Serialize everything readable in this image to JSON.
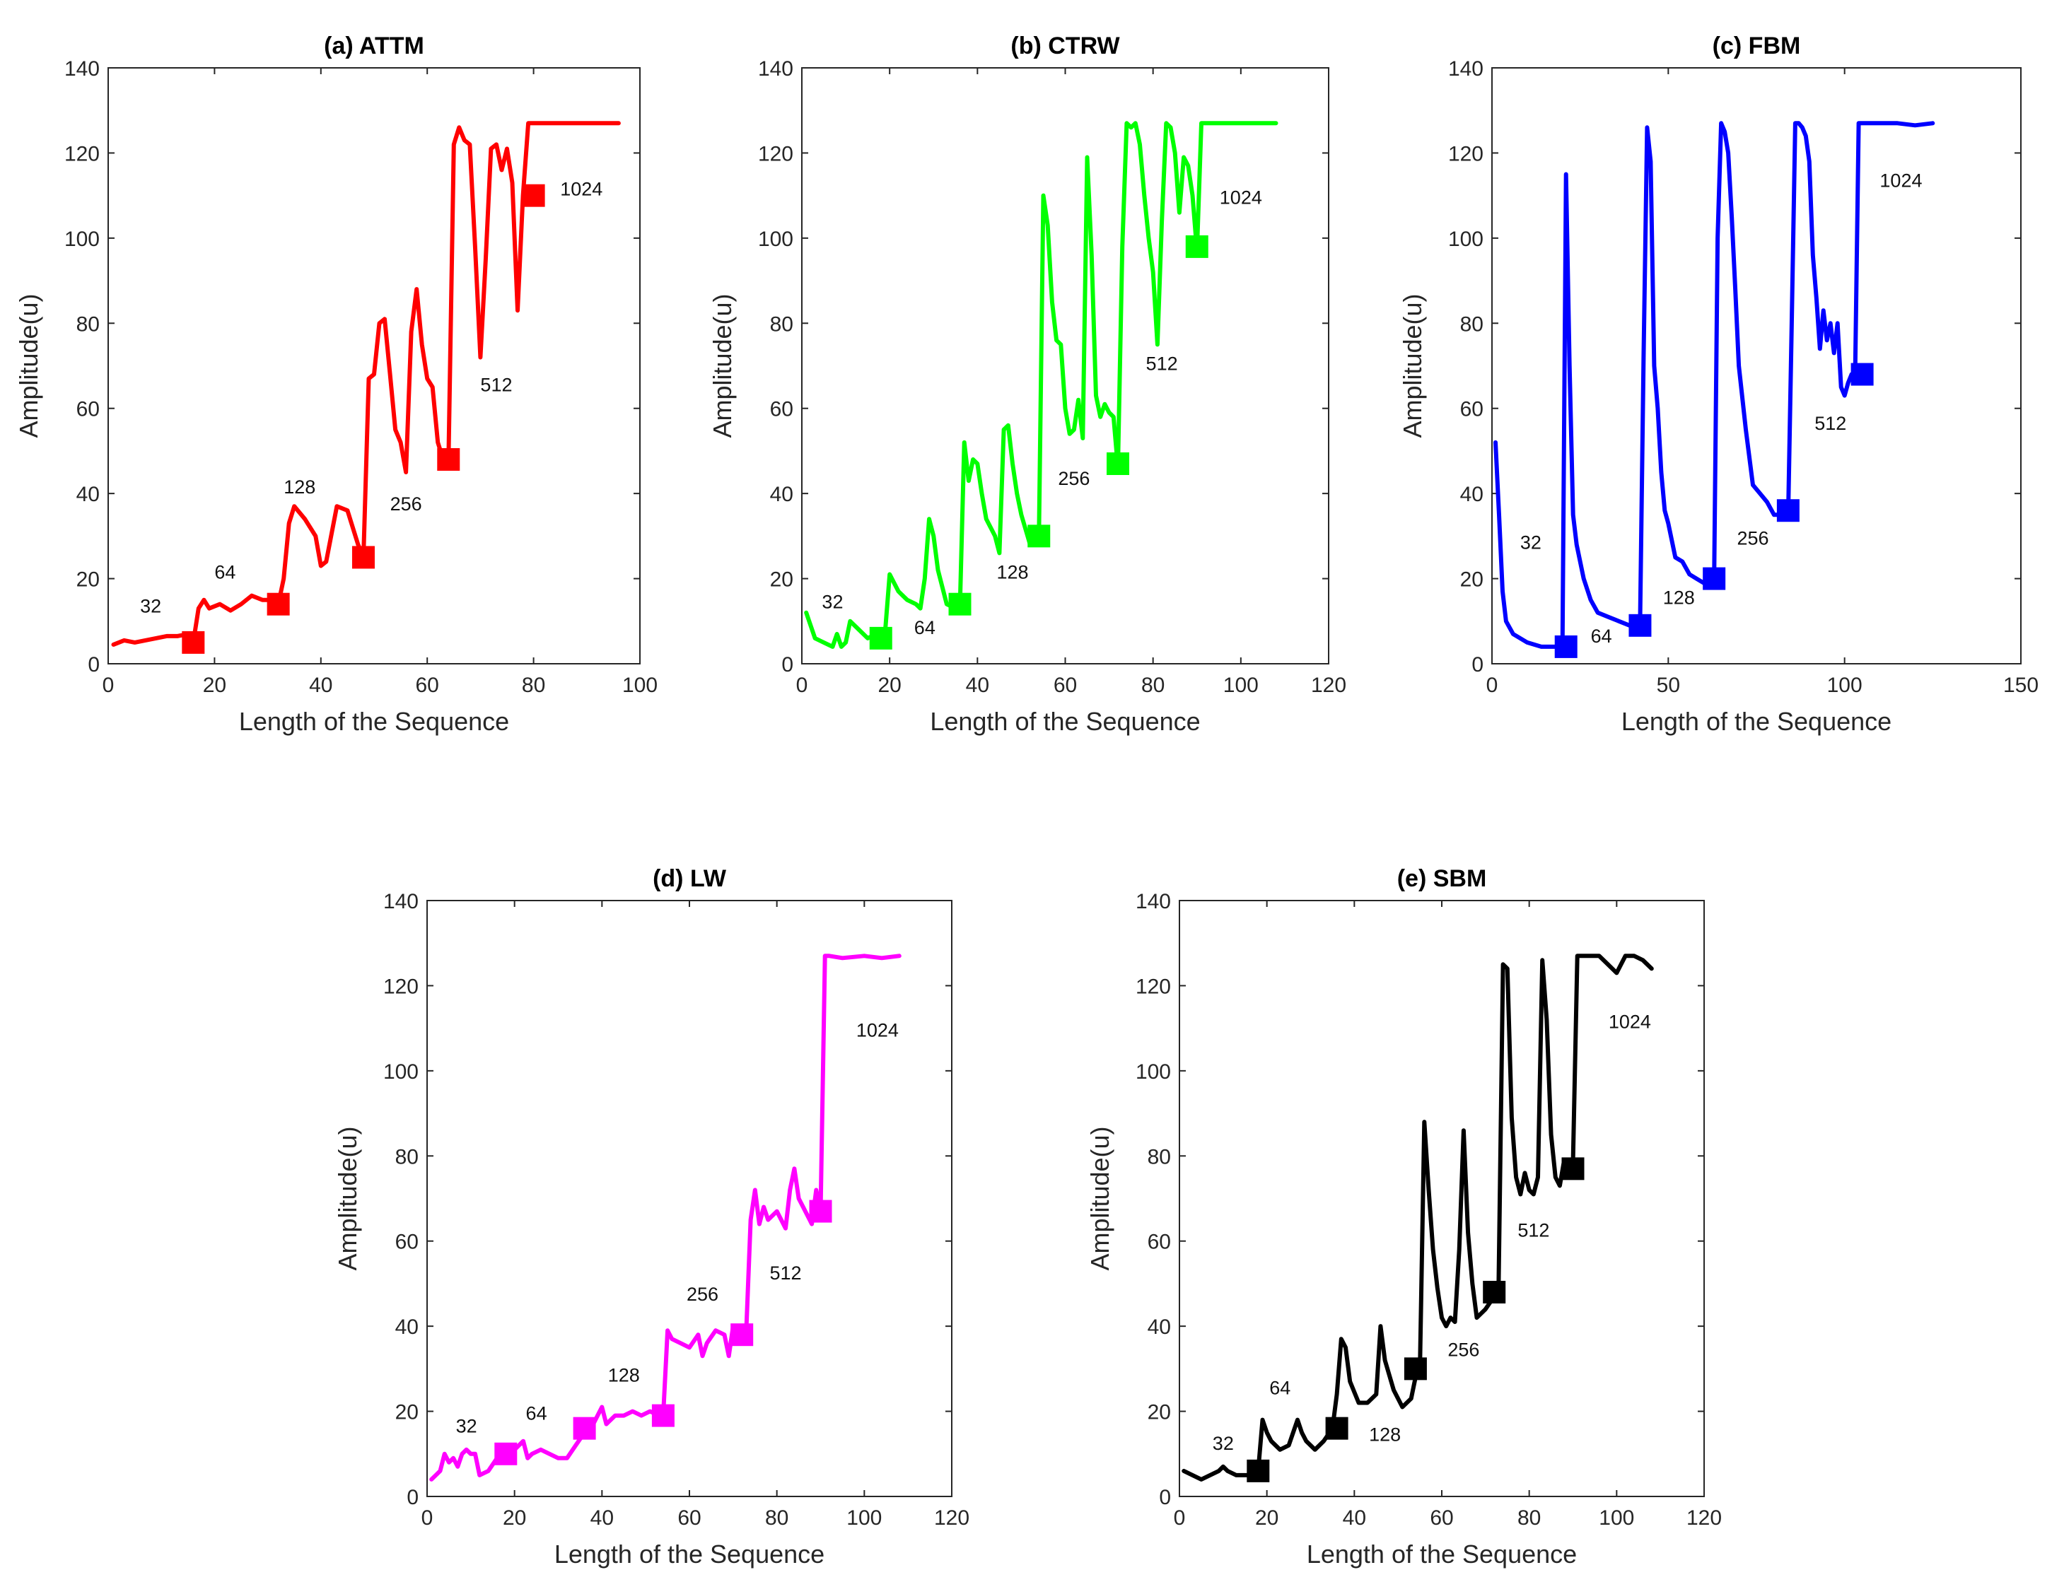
{
  "chart_data": [
    {
      "type": "line",
      "title": "(a) ATTM",
      "xlabel": "Length of the Sequence",
      "ylabel": "Amplitude(u)",
      "xlim": [
        0,
        100
      ],
      "ylim": [
        0,
        140
      ],
      "xticks": [
        0,
        20,
        40,
        60,
        80,
        100
      ],
      "yticks": [
        0,
        20,
        40,
        60,
        80,
        100,
        120,
        140
      ],
      "grid": true,
      "color": "#ff0000",
      "series": [
        {
          "name": "ATTM",
          "x": [
            1,
            3,
            5,
            7,
            9,
            11,
            13,
            15,
            16,
            17,
            18,
            19,
            21,
            23,
            25,
            27,
            29,
            31,
            32,
            33,
            34,
            35,
            37,
            39,
            40,
            41,
            43,
            45,
            47,
            48,
            49,
            50,
            51,
            52,
            53,
            54,
            55,
            56,
            57,
            58,
            59,
            60,
            61,
            62,
            63,
            64,
            65,
            66,
            67,
            68,
            69,
            70,
            71,
            72,
            73,
            74,
            75,
            76,
            77,
            78,
            79,
            80,
            81,
            83,
            85,
            87,
            90,
            93,
            96
          ],
          "y": [
            4.5,
            5.5,
            5,
            5.5,
            6,
            6.5,
            6.5,
            7,
            5,
            13,
            15,
            13,
            14,
            12.5,
            14,
            16,
            15,
            15,
            14,
            20,
            33,
            37,
            34,
            30,
            23,
            24,
            37,
            36,
            28,
            25,
            67,
            68,
            80,
            81,
            68,
            55,
            52,
            45,
            78,
            88,
            75,
            67,
            65,
            52,
            48,
            48,
            122,
            126,
            123,
            122,
            98,
            72,
            95,
            121,
            122,
            116,
            121,
            113,
            83,
            110,
            127,
            127,
            127,
            127,
            127,
            127,
            127,
            127,
            127
          ]
        }
      ],
      "markers": [
        {
          "x": 16,
          "y": 5
        },
        {
          "x": 32,
          "y": 14
        },
        {
          "x": 48,
          "y": 25
        },
        {
          "x": 64,
          "y": 48
        },
        {
          "x": 80,
          "y": 110
        }
      ],
      "annotations": [
        {
          "text": "32",
          "x": 8,
          "y": 12
        },
        {
          "text": "64",
          "x": 22,
          "y": 20
        },
        {
          "text": "128",
          "x": 36,
          "y": 40
        },
        {
          "text": "256",
          "x": 56,
          "y": 36
        },
        {
          "text": "512",
          "x": 73,
          "y": 64
        },
        {
          "text": "1024",
          "x": 89,
          "y": 110
        }
      ]
    },
    {
      "type": "line",
      "title": "(b) CTRW",
      "xlabel": "Length of the Sequence",
      "ylabel": "Amplitude(u)",
      "xlim": [
        0,
        120
      ],
      "ylim": [
        0,
        140
      ],
      "xticks": [
        0,
        20,
        40,
        60,
        80,
        100,
        120
      ],
      "yticks": [
        0,
        20,
        40,
        60,
        80,
        100,
        120,
        140
      ],
      "grid": true,
      "color": "#00ff00",
      "series": [
        {
          "name": "CTRW",
          "x": [
            1,
            2,
            3,
            5,
            7,
            8,
            9,
            10,
            11,
            13,
            15,
            17,
            18,
            19,
            20,
            22,
            24,
            26,
            27,
            28,
            29,
            30,
            31,
            32,
            33,
            35,
            36,
            37,
            38,
            39,
            40,
            41,
            42,
            43,
            44,
            45,
            46,
            47,
            48,
            49,
            50,
            52,
            54,
            55,
            56,
            57,
            58,
            59,
            60,
            61,
            62,
            63,
            64,
            65,
            66,
            67,
            68,
            69,
            70,
            71,
            72,
            73,
            74,
            75,
            76,
            77,
            78,
            79,
            80,
            81,
            82,
            83,
            84,
            85,
            86,
            87,
            88,
            89,
            90,
            91,
            93,
            96,
            100,
            104,
            108
          ],
          "y": [
            12,
            9,
            6,
            5,
            4,
            7,
            4,
            5,
            10,
            8,
            6,
            7,
            6,
            8,
            21,
            17,
            15,
            14,
            13,
            20,
            34,
            30,
            22,
            18,
            14,
            13,
            13,
            52,
            43,
            48,
            47,
            40,
            34,
            32,
            30,
            26,
            55,
            56,
            47,
            40,
            35,
            28,
            30,
            110,
            103,
            85,
            76,
            75,
            60,
            54,
            55,
            62,
            53,
            119,
            96,
            63,
            58,
            61,
            59,
            58,
            46,
            98,
            127,
            126,
            127,
            122,
            110,
            100,
            92,
            75,
            104,
            127,
            126,
            120,
            106,
            119,
            117,
            110,
            97,
            127,
            127,
            127,
            127,
            127,
            127
          ]
        }
      ],
      "markers": [
        {
          "x": 18,
          "y": 6
        },
        {
          "x": 36,
          "y": 14
        },
        {
          "x": 54,
          "y": 30
        },
        {
          "x": 72,
          "y": 47
        },
        {
          "x": 90,
          "y": 98
        }
      ],
      "annotations": [
        {
          "text": "32",
          "x": 7,
          "y": 13
        },
        {
          "text": "64",
          "x": 28,
          "y": 7
        },
        {
          "text": "128",
          "x": 48,
          "y": 20
        },
        {
          "text": "256",
          "x": 62,
          "y": 42
        },
        {
          "text": "512",
          "x": 82,
          "y": 69
        },
        {
          "text": "1024",
          "x": 100,
          "y": 108
        }
      ]
    },
    {
      "type": "line",
      "title": "(c) FBM",
      "xlabel": "Length of the Sequence",
      "ylabel": "Amplitude(u)",
      "xlim": [
        0,
        150
      ],
      "ylim": [
        0,
        140
      ],
      "xticks": [
        0,
        50,
        100,
        150
      ],
      "yticks": [
        0,
        20,
        40,
        60,
        80,
        100,
        120,
        140
      ],
      "grid": true,
      "color": "#0000ff",
      "series": [
        {
          "name": "FBM",
          "x": [
            1,
            2,
            3,
            4,
            6,
            8,
            10,
            12,
            14,
            16,
            18,
            20,
            21,
            22,
            23,
            24,
            26,
            28,
            30,
            33,
            36,
            39,
            42,
            43,
            44,
            45,
            46,
            47,
            48,
            49,
            50,
            52,
            54,
            56,
            58,
            60,
            63,
            64,
            65,
            66,
            67,
            68,
            69,
            70,
            72,
            74,
            76,
            78,
            80,
            82,
            84,
            85,
            86,
            87,
            88,
            89,
            90,
            91,
            92,
            93,
            94,
            95,
            96,
            97,
            98,
            99,
            100,
            101,
            102,
            103,
            104,
            105,
            106,
            110,
            115,
            120,
            125
          ],
          "y": [
            52,
            35,
            17,
            10,
            7,
            6,
            5,
            4.5,
            4,
            4,
            4,
            4,
            115,
            70,
            35,
            28,
            20,
            15,
            12,
            11,
            10,
            9,
            9,
            72,
            126,
            118,
            70,
            60,
            45,
            36,
            33,
            25,
            24,
            21,
            20,
            19,
            20,
            100,
            127,
            125,
            120,
            105,
            88,
            70,
            55,
            42,
            40,
            38,
            35,
            35,
            35,
            80,
            127,
            127,
            126,
            124,
            118,
            96,
            86,
            74,
            83,
            76,
            80,
            73,
            80,
            65,
            63,
            66,
            68,
            68,
            127,
            127,
            127,
            127,
            127,
            126.5,
            127
          ]
        }
      ],
      "markers": [
        {
          "x": 21,
          "y": 4
        },
        {
          "x": 42,
          "y": 9
        },
        {
          "x": 63,
          "y": 20
        },
        {
          "x": 84,
          "y": 36
        },
        {
          "x": 105,
          "y": 68
        }
      ],
      "annotations": [
        {
          "text": "32",
          "x": 11,
          "y": 27
        },
        {
          "text": "64",
          "x": 31,
          "y": 5
        },
        {
          "text": "128",
          "x": 53,
          "y": 14
        },
        {
          "text": "256",
          "x": 74,
          "y": 28
        },
        {
          "text": "512",
          "x": 96,
          "y": 55
        },
        {
          "text": "1024",
          "x": 116,
          "y": 112
        }
      ]
    },
    {
      "type": "line",
      "title": "(d) LW",
      "xlabel": "Length of the Sequence",
      "ylabel": "Amplitude(u)",
      "xlim": [
        0,
        120
      ],
      "ylim": [
        0,
        140
      ],
      "xticks": [
        0,
        20,
        40,
        60,
        80,
        100,
        120
      ],
      "yticks": [
        0,
        20,
        40,
        60,
        80,
        100,
        120,
        140
      ],
      "grid": true,
      "color": "#ff00ff",
      "series": [
        {
          "name": "LW",
          "x": [
            1,
            2,
            3,
            4,
            5,
            6,
            7,
            8,
            9,
            10,
            11,
            12,
            14,
            16,
            18,
            20,
            21,
            22,
            23,
            24,
            26,
            28,
            30,
            32,
            34,
            36,
            38,
            39,
            40,
            41,
            43,
            45,
            47,
            49,
            51,
            53,
            54,
            55,
            56,
            58,
            60,
            62,
            63,
            64,
            66,
            68,
            69,
            70,
            71,
            72,
            73,
            74,
            75,
            76,
            77,
            78,
            80,
            82,
            83,
            84,
            85,
            86,
            88,
            89,
            90,
            91,
            92,
            95,
            100,
            104,
            108
          ],
          "y": [
            4,
            5,
            6,
            10,
            8,
            9,
            7,
            10,
            11,
            10,
            10,
            5,
            6,
            9,
            10,
            11,
            12,
            13,
            9,
            10,
            11,
            10,
            9,
            9,
            12,
            15,
            17,
            19,
            21,
            17,
            19,
            19,
            20,
            19,
            20,
            19,
            19,
            39,
            37,
            36,
            35,
            38,
            33,
            36,
            39,
            38,
            33,
            40,
            38,
            37,
            39,
            65,
            72,
            64,
            68,
            65,
            67,
            63,
            72,
            77,
            70,
            68,
            64,
            72,
            67,
            127,
            127,
            126.5,
            127,
            126.5,
            127
          ]
        }
      ],
      "markers": [
        {
          "x": 18,
          "y": 10
        },
        {
          "x": 36,
          "y": 16
        },
        {
          "x": 54,
          "y": 19
        },
        {
          "x": 72,
          "y": 38
        },
        {
          "x": 90,
          "y": 67
        }
      ],
      "annotations": [
        {
          "text": "32",
          "x": 9,
          "y": 15
        },
        {
          "text": "64",
          "x": 25,
          "y": 18
        },
        {
          "text": "128",
          "x": 45,
          "y": 27
        },
        {
          "text": "256",
          "x": 63,
          "y": 46
        },
        {
          "text": "512",
          "x": 82,
          "y": 51
        },
        {
          "text": "1024",
          "x": 103,
          "y": 108
        }
      ]
    },
    {
      "type": "line",
      "title": "(e) SBM",
      "xlabel": "Length of the Sequence",
      "ylabel": "Amplitude(u)",
      "xlim": [
        0,
        120
      ],
      "ylim": [
        0,
        140
      ],
      "xticks": [
        0,
        20,
        40,
        60,
        80,
        100,
        120
      ],
      "yticks": [
        0,
        20,
        40,
        60,
        80,
        100,
        120,
        140
      ],
      "grid": true,
      "color": "#000000",
      "series": [
        {
          "name": "SBM",
          "x": [
            1,
            3,
            5,
            7,
            9,
            10,
            11,
            13,
            15,
            17,
            18,
            19,
            20,
            21,
            23,
            25,
            27,
            28,
            29,
            31,
            33,
            35,
            36,
            37,
            38,
            39,
            41,
            43,
            45,
            46,
            47,
            49,
            51,
            53,
            54,
            55,
            56,
            57,
            58,
            59,
            60,
            61,
            62,
            63,
            64,
            65,
            66,
            67,
            68,
            70,
            72,
            73,
            74,
            75,
            76,
            77,
            78,
            79,
            80,
            81,
            82,
            83,
            84,
            85,
            86,
            87,
            88,
            89,
            90,
            91,
            92,
            94,
            96,
            98,
            100,
            102,
            104,
            106,
            108
          ],
          "y": [
            6,
            5,
            4,
            5,
            6,
            7,
            6,
            5,
            5,
            5,
            6,
            18,
            15,
            13,
            11,
            12,
            18,
            15,
            13,
            11,
            13,
            16,
            24,
            37,
            35,
            27,
            22,
            22,
            24,
            40,
            32,
            25,
            21,
            23,
            28,
            30,
            88,
            72,
            58,
            49,
            42,
            40,
            42,
            41,
            58,
            86,
            62,
            50,
            42,
            44,
            47,
            50,
            125,
            124,
            89,
            75,
            71,
            76,
            72,
            71,
            75,
            126,
            112,
            85,
            75,
            73,
            79,
            77,
            78,
            127,
            127,
            127,
            127,
            125,
            123,
            127,
            127,
            126,
            124
          ]
        }
      ],
      "markers": [
        {
          "x": 18,
          "y": 6
        },
        {
          "x": 36,
          "y": 16
        },
        {
          "x": 54,
          "y": 30
        },
        {
          "x": 72,
          "y": 48
        },
        {
          "x": 90,
          "y": 77
        }
      ],
      "annotations": [
        {
          "text": "32",
          "x": 10,
          "y": 11
        },
        {
          "text": "64",
          "x": 23,
          "y": 24
        },
        {
          "text": "128",
          "x": 47,
          "y": 13
        },
        {
          "text": "256",
          "x": 65,
          "y": 33
        },
        {
          "text": "512",
          "x": 81,
          "y": 61
        },
        {
          "text": "1024",
          "x": 103,
          "y": 110
        }
      ]
    }
  ]
}
